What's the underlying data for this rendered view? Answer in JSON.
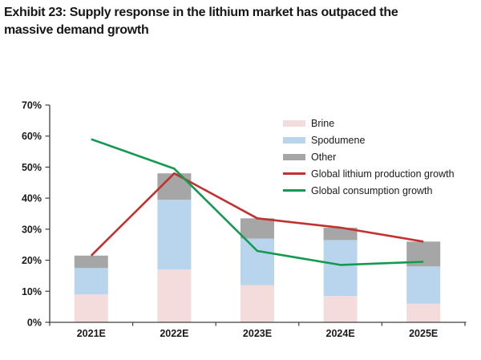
{
  "title": {
    "lines": [
      "Exhibit 23: Supply response in the lithium market has outpaced the",
      "massive demand growth"
    ]
  },
  "chart_data": {
    "type": "combo_stacked_bar_line",
    "title": "",
    "xlabel": "",
    "ylabel": "",
    "categories": [
      "2021E",
      "2022E",
      "2023E",
      "2024E",
      "2025E"
    ],
    "bar_series": [
      {
        "name": "Brine",
        "color": "#f3dcdb",
        "values": [
          9,
          17,
          12,
          8.5,
          6
        ]
      },
      {
        "name": "Spodumene",
        "color": "#b9d5ed",
        "values": [
          8.5,
          22.5,
          15,
          18,
          12
        ]
      },
      {
        "name": "Other",
        "color": "#a6a6a6",
        "values": [
          4,
          8.5,
          6.5,
          4,
          8
        ]
      }
    ],
    "bar_totals": [
      21.5,
      48,
      33.5,
      30.5,
      26
    ],
    "line_series": [
      {
        "name": "Global lithium production growth",
        "color": "#c2312f",
        "values": [
          21.5,
          48,
          33.5,
          30.5,
          26
        ]
      },
      {
        "name": "Global consumption growth",
        "color": "#149a50",
        "values": [
          59,
          49.5,
          23,
          18.5,
          19.5
        ]
      }
    ],
    "ylim": [
      0,
      70
    ],
    "ytick_step": 10,
    "ytick_labels": [
      "0%",
      "10%",
      "20%",
      "30%",
      "40%",
      "50%",
      "60%",
      "70%"
    ],
    "grid": false,
    "legend_position": "inside-top-right",
    "axis_color": "#404040",
    "text_color": "#1a1a1a"
  }
}
